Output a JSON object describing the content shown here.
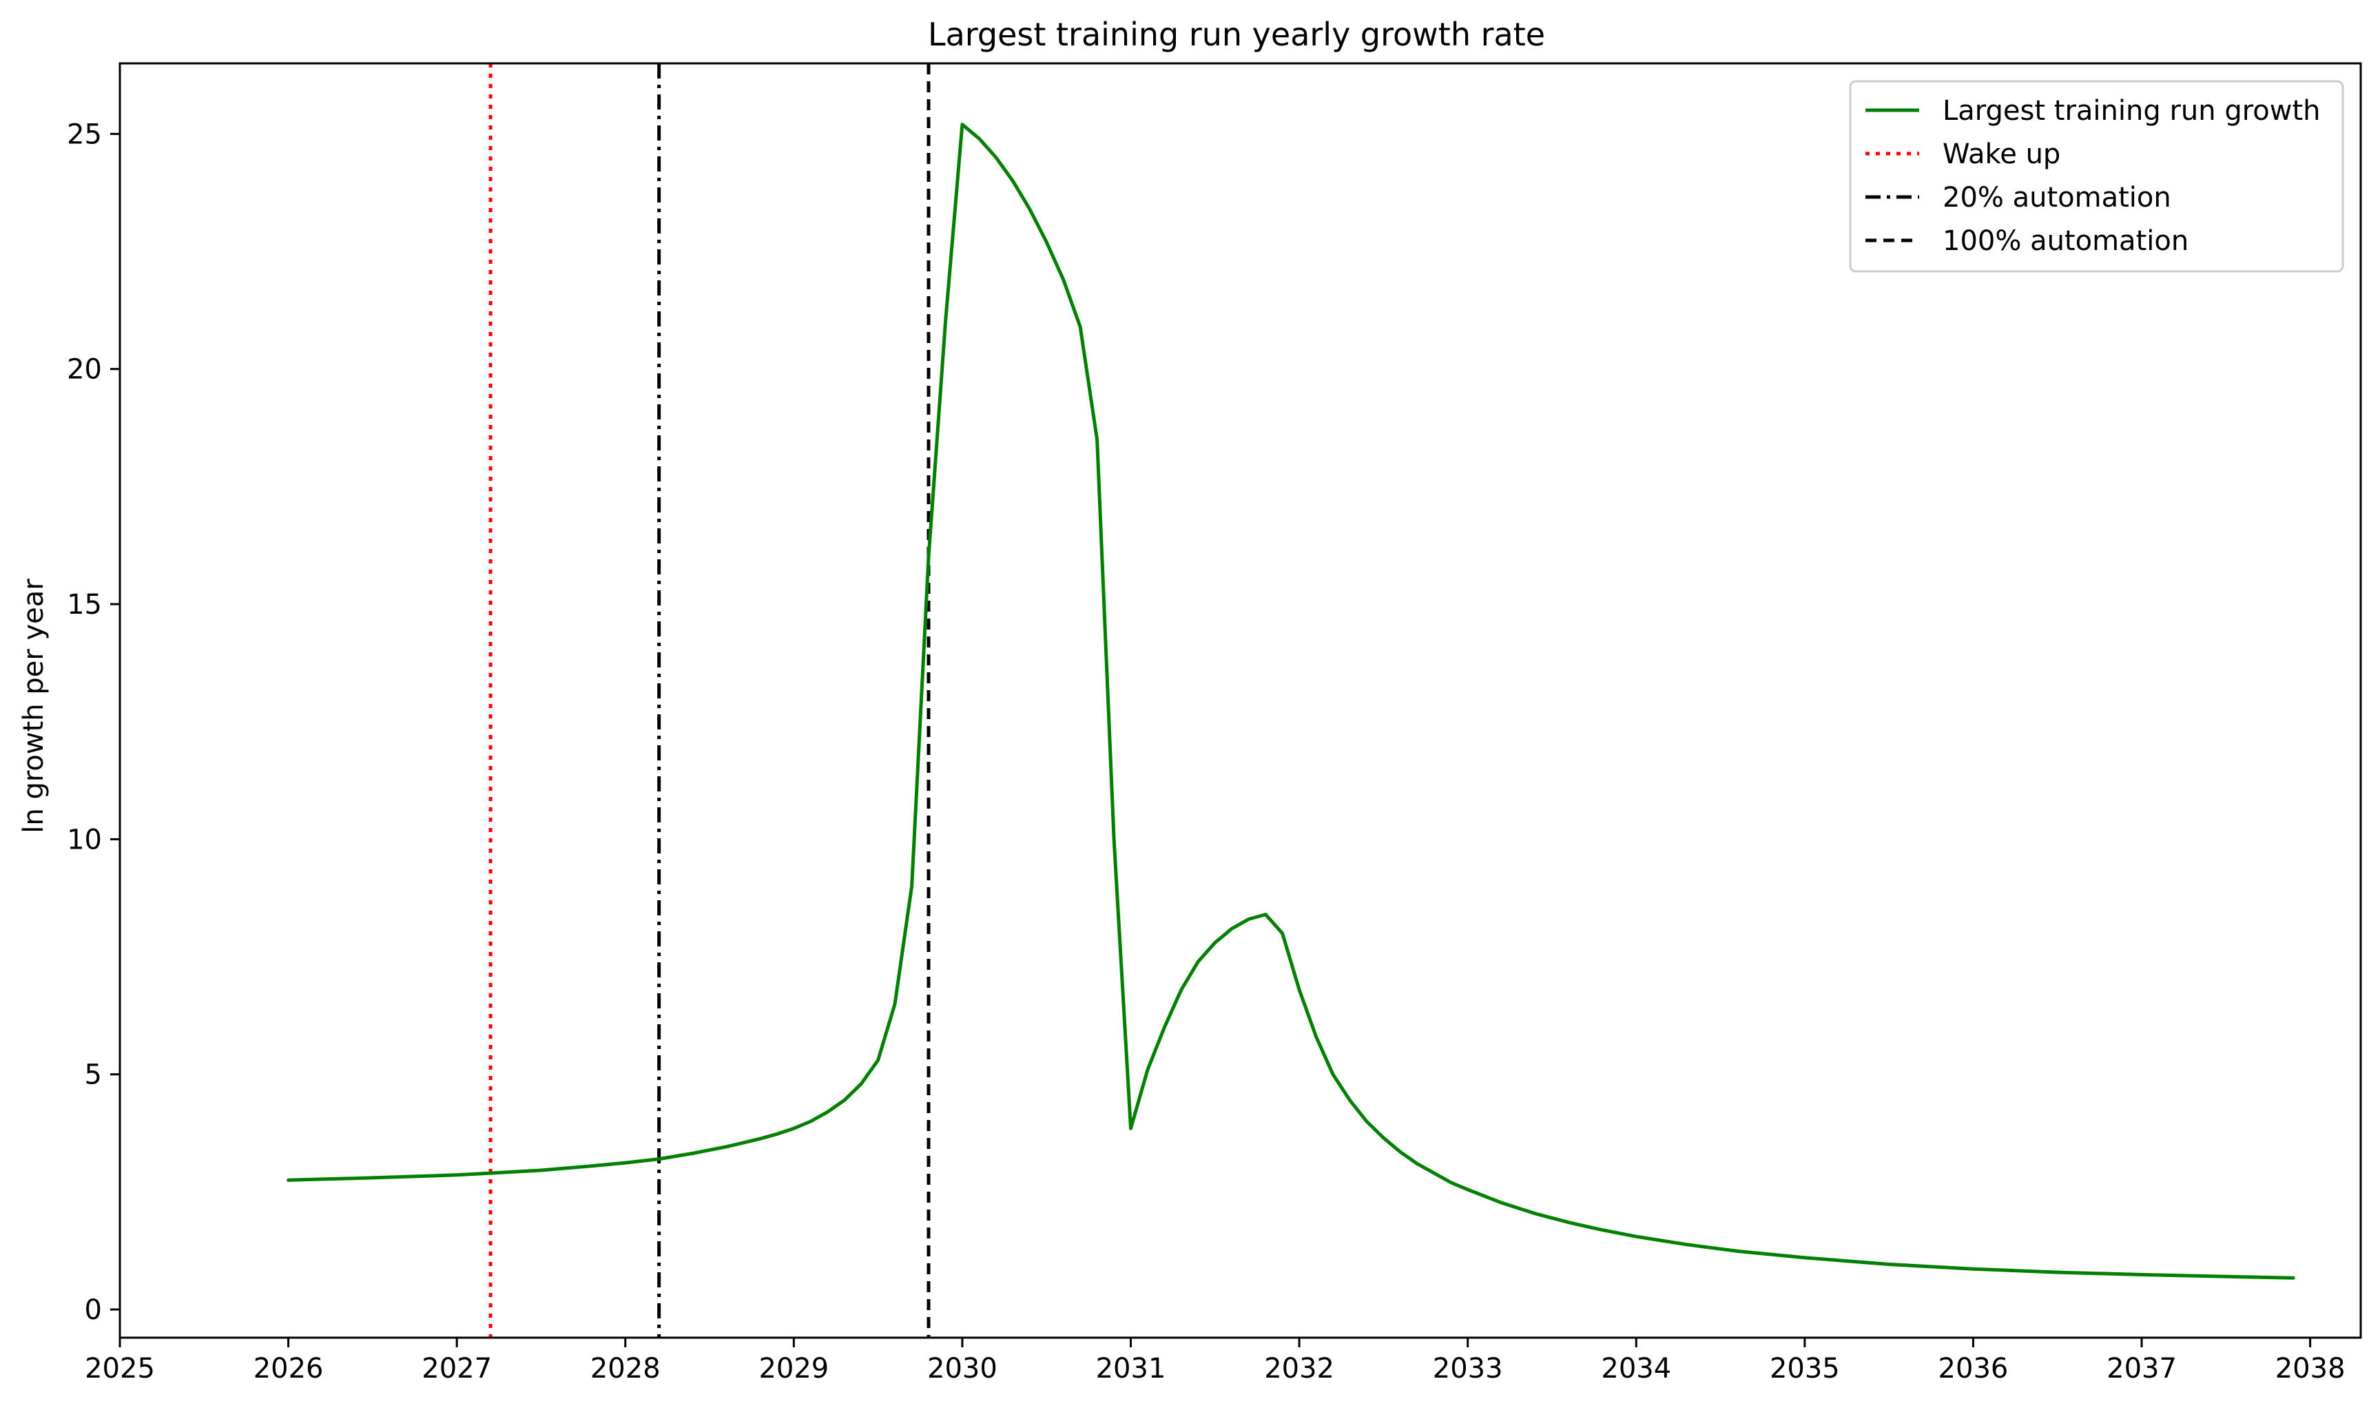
{
  "chart_data": {
    "type": "line",
    "title": "Largest training run yearly growth rate",
    "xlabel": "",
    "ylabel": "ln growth per year",
    "xlim": [
      2025,
      2038.3
    ],
    "ylim": [
      -0.6,
      26.5
    ],
    "xticks": [
      2025,
      2026,
      2027,
      2028,
      2029,
      2030,
      2031,
      2032,
      2033,
      2034,
      2035,
      2036,
      2037,
      2038
    ],
    "yticks": [
      0,
      5,
      10,
      15,
      20,
      25
    ],
    "grid": false,
    "legend_position": "top-right",
    "series": [
      {
        "name": "Largest training run growth",
        "color": "#008000",
        "style": "solid",
        "x": [
          2026.0,
          2026.5,
          2027.0,
          2027.2,
          2027.5,
          2027.8,
          2028.0,
          2028.2,
          2028.4,
          2028.6,
          2028.8,
          2028.9,
          2029.0,
          2029.1,
          2029.2,
          2029.3,
          2029.4,
          2029.5,
          2029.6,
          2029.7,
          2029.8,
          2029.9,
          2030.0,
          2030.1,
          2030.2,
          2030.3,
          2030.4,
          2030.5,
          2030.6,
          2030.7,
          2030.8,
          2030.9,
          2031.0,
          2031.1,
          2031.2,
          2031.3,
          2031.4,
          2031.5,
          2031.6,
          2031.7,
          2031.8,
          2031.9,
          2032.0,
          2032.1,
          2032.2,
          2032.3,
          2032.4,
          2032.5,
          2032.6,
          2032.7,
          2032.8,
          2032.9,
          2033.0,
          2033.2,
          2033.4,
          2033.6,
          2033.8,
          2034.0,
          2034.3,
          2034.6,
          2035.0,
          2035.5,
          2036.0,
          2036.5,
          2037.0,
          2037.5,
          2037.9
        ],
        "y": [
          2.75,
          2.8,
          2.86,
          2.9,
          2.96,
          3.05,
          3.12,
          3.2,
          3.32,
          3.46,
          3.63,
          3.73,
          3.85,
          4.0,
          4.2,
          4.45,
          4.8,
          5.3,
          6.5,
          9.0,
          16.0,
          21.0,
          25.2,
          24.9,
          24.5,
          24.0,
          23.4,
          22.7,
          21.9,
          20.9,
          18.5,
          10.0,
          3.85,
          5.1,
          6.0,
          6.8,
          7.4,
          7.8,
          8.1,
          8.3,
          8.4,
          8.0,
          6.8,
          5.8,
          5.0,
          4.45,
          4.0,
          3.65,
          3.35,
          3.1,
          2.9,
          2.7,
          2.55,
          2.27,
          2.04,
          1.85,
          1.69,
          1.55,
          1.38,
          1.24,
          1.1,
          0.96,
          0.86,
          0.79,
          0.74,
          0.7,
          0.67
        ]
      }
    ],
    "vlines": [
      {
        "name": "Wake up",
        "x": 2027.2,
        "color": "#ff0000",
        "style": "dotted"
      },
      {
        "name": "20% automation",
        "x": 2028.2,
        "color": "#000000",
        "style": "dashdot"
      },
      {
        "name": "100% automation",
        "x": 2029.8,
        "color": "#000000",
        "style": "dashed"
      }
    ]
  }
}
